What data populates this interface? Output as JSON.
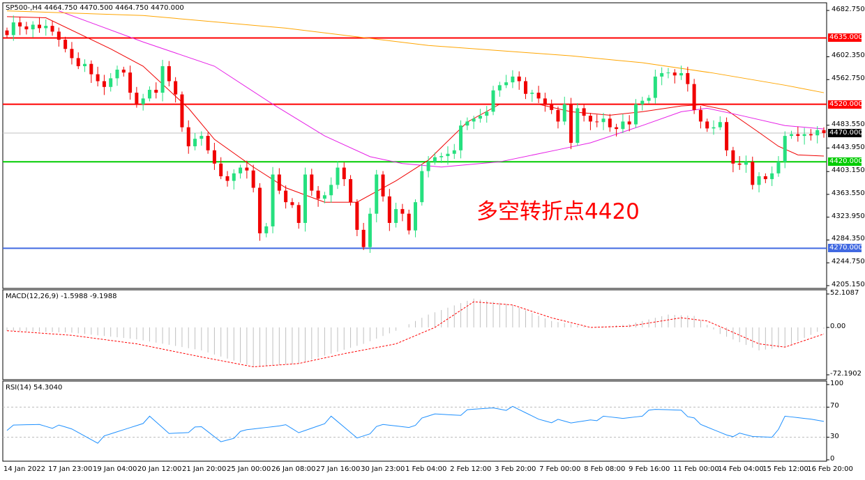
{
  "header": {
    "symbol_ohlc": "SP500-,H4  4464.750 4470.500 4464.750 4470.000",
    "macd_label": "MACD(12,26,9) -1.5988 -9.1988",
    "rsi_label": "RSI(14) 54.3040"
  },
  "annotation": "多空转折点4420",
  "colors": {
    "bull": "#26e07f",
    "bear": "#f00000",
    "ma_fast": "#f00000",
    "ma_mid": "#e61ee6",
    "ma_slow": "#ffa500",
    "level_red": "#ff0000",
    "level_green": "#00cc00",
    "level_blue": "#4169e1",
    "rsi": "#1e90ff"
  },
  "chart_data": [
    {
      "type": "candlestick",
      "title": "SP500-,H4",
      "ylim": [
        4205.15,
        4682.75
      ],
      "y_ticks": [
        "4682.750",
        "4602.350",
        "4562.750",
        "4483.550",
        "4443.950",
        "4403.150",
        "4363.550",
        "4323.950",
        "4284.350",
        "4244.750",
        "4205.150"
      ],
      "x_ticks": [
        "14 Jan 2022",
        "17 Jan 23:00",
        "19 Jan 04:00",
        "20 Jan 12:00",
        "21 Jan 20:00",
        "25 Jan 00:00",
        "26 Jan 08:00",
        "27 Jan 16:00",
        "30 Jan 23:00",
        "1 Feb 04:00",
        "2 Feb 12:00",
        "3 Feb 20:00",
        "7 Feb 00:00",
        "8 Feb 08:00",
        "9 Feb 16:00",
        "11 Feb 00:00",
        "14 Feb 04:00",
        "15 Feb 12:00",
        "16 Feb 20:00"
      ],
      "closes": [
        4640,
        4662,
        4655,
        4650,
        4658,
        4652,
        4656,
        4646,
        4632,
        4616,
        4600,
        4586,
        4590,
        4572,
        4560,
        4550,
        4565,
        4580,
        4575,
        4540,
        4520,
        4530,
        4545,
        4540,
        4586,
        4560,
        4537,
        4480,
        4447,
        4460,
        4465,
        4440,
        4417,
        4395,
        4387,
        4400,
        4410,
        4405,
        4375,
        4296,
        4308,
        4398,
        4370,
        4350,
        4345,
        4314,
        4398,
        4370,
        4356,
        4362,
        4380,
        4410,
        4390,
        4350,
        4302,
        4272,
        4330,
        4398,
        4360,
        4314,
        4338,
        4330,
        4301,
        4350,
        4404,
        4420,
        4428,
        4430,
        4434,
        4440,
        4483,
        4490,
        4495,
        4500,
        4507,
        4544,
        4553,
        4558,
        4568,
        4560,
        4538,
        4540,
        4530,
        4520,
        4510,
        4490,
        4520,
        4453,
        4513,
        4500,
        4490,
        4489,
        4495,
        4480,
        4477,
        4490,
        4485,
        4520,
        4526,
        4531,
        4568,
        4574,
        4575,
        4570,
        4574,
        4555,
        4510,
        4490,
        4478,
        4480,
        4489,
        4440,
        4417,
        4415,
        4420,
        4380,
        4395,
        4390,
        4400,
        4420,
        4465,
        4468,
        4465,
        4468,
        4466,
        4475,
        4470
      ],
      "moving_averages": [
        {
          "color_key": "ma_fast",
          "points": [
            [
              0,
              4672
            ],
            [
              6,
              4670
            ],
            [
              16,
              4616
            ],
            [
              21,
              4586
            ],
            [
              28,
              4513
            ],
            [
              32,
              4459
            ],
            [
              38,
              4411
            ],
            [
              43,
              4375
            ],
            [
              49,
              4350
            ],
            [
              54,
              4350
            ],
            [
              60,
              4387
            ],
            [
              65,
              4423
            ],
            [
              71,
              4489
            ],
            [
              76,
              4520
            ],
            [
              82,
              4520
            ],
            [
              87,
              4507
            ],
            [
              93,
              4501
            ],
            [
              98,
              4507
            ],
            [
              104,
              4517
            ],
            [
              107,
              4519
            ],
            [
              111,
              4510
            ],
            [
              116,
              4471
            ],
            [
              119,
              4447
            ],
            [
              122,
              4432
            ],
            [
              126,
              4430
            ]
          ]
        },
        {
          "color_key": "ma_mid",
          "points": [
            [
              8,
              4682
            ],
            [
              21,
              4628
            ],
            [
              32,
              4586
            ],
            [
              41,
              4520
            ],
            [
              49,
              4465
            ],
            [
              56,
              4429
            ],
            [
              61,
              4417
            ],
            [
              67,
              4411
            ],
            [
              76,
              4420
            ],
            [
              85,
              4441
            ],
            [
              90,
              4453
            ],
            [
              98,
              4483
            ],
            [
              104,
              4507
            ],
            [
              108,
              4513
            ],
            [
              113,
              4501
            ],
            [
              120,
              4483
            ],
            [
              126,
              4477
            ]
          ]
        },
        {
          "color_key": "ma_slow",
          "points": [
            [
              0,
              4682
            ],
            [
              21,
              4674
            ],
            [
              43,
              4652
            ],
            [
              65,
              4622
            ],
            [
              87,
              4604
            ],
            [
              98,
              4592
            ],
            [
              109,
              4574
            ],
            [
              120,
              4553
            ],
            [
              126,
              4540
            ]
          ]
        }
      ],
      "levels": [
        {
          "value": 4635,
          "label": "4635.000",
          "color_key": "level_red"
        },
        {
          "value": 4520,
          "label": "4520.000",
          "color_key": "level_red"
        },
        {
          "value": 4470,
          "label": "4470.000",
          "color_key": "current"
        },
        {
          "value": 4420,
          "label": "4420.000",
          "color_key": "level_green"
        },
        {
          "value": 4270,
          "label": "4270.000",
          "color_key": "level_blue"
        }
      ]
    },
    {
      "type": "bar+line",
      "title": "MACD(12,26,9)",
      "ylim": [
        -72.1902,
        52.1087
      ],
      "y_ticks": [
        "52.1087",
        "0.00",
        "-72.1902"
      ],
      "histogram": [
        [
          0,
          -5
        ],
        [
          10,
          -8
        ],
        [
          20,
          -18
        ],
        [
          30,
          -35
        ],
        [
          38,
          -60
        ],
        [
          45,
          -55
        ],
        [
          55,
          -25
        ],
        [
          60,
          -5
        ],
        [
          65,
          20
        ],
        [
          72,
          45
        ],
        [
          78,
          35
        ],
        [
          84,
          10
        ],
        [
          90,
          0
        ],
        [
          96,
          5
        ],
        [
          102,
          20
        ],
        [
          106,
          18
        ],
        [
          110,
          -10
        ],
        [
          116,
          -35
        ],
        [
          120,
          -30
        ],
        [
          126,
          -2
        ]
      ],
      "signal": [
        [
          0,
          -5
        ],
        [
          10,
          -12
        ],
        [
          20,
          -25
        ],
        [
          30,
          -45
        ],
        [
          38,
          -60
        ],
        [
          45,
          -55
        ],
        [
          52,
          -40
        ],
        [
          60,
          -25
        ],
        [
          66,
          0
        ],
        [
          72,
          40
        ],
        [
          78,
          35
        ],
        [
          84,
          15
        ],
        [
          90,
          0
        ],
        [
          96,
          2
        ],
        [
          104,
          15
        ],
        [
          108,
          10
        ],
        [
          116,
          -25
        ],
        [
          120,
          -30
        ],
        [
          126,
          -10
        ]
      ]
    },
    {
      "type": "line",
      "title": "RSI(14)",
      "ylim": [
        0,
        100
      ],
      "y_ticks": [
        "100",
        "70",
        "30",
        "0"
      ],
      "values": [
        [
          0,
          42
        ],
        [
          5,
          48
        ],
        [
          10,
          40
        ],
        [
          14,
          25
        ],
        [
          18,
          40
        ],
        [
          22,
          55
        ],
        [
          25,
          35
        ],
        [
          30,
          42
        ],
        [
          33,
          25
        ],
        [
          37,
          38
        ],
        [
          42,
          48
        ],
        [
          45,
          35
        ],
        [
          50,
          55
        ],
        [
          54,
          30
        ],
        [
          58,
          45
        ],
        [
          62,
          45
        ],
        [
          66,
          60
        ],
        [
          70,
          62
        ],
        [
          75,
          70
        ],
        [
          78,
          68
        ],
        [
          82,
          55
        ],
        [
          87,
          48
        ],
        [
          90,
          55
        ],
        [
          95,
          55
        ],
        [
          100,
          65
        ],
        [
          104,
          68
        ],
        [
          107,
          45
        ],
        [
          111,
          35
        ],
        [
          115,
          30
        ],
        [
          118,
          32
        ],
        [
          120,
          55
        ],
        [
          124,
          55
        ],
        [
          126,
          54
        ]
      ]
    }
  ]
}
